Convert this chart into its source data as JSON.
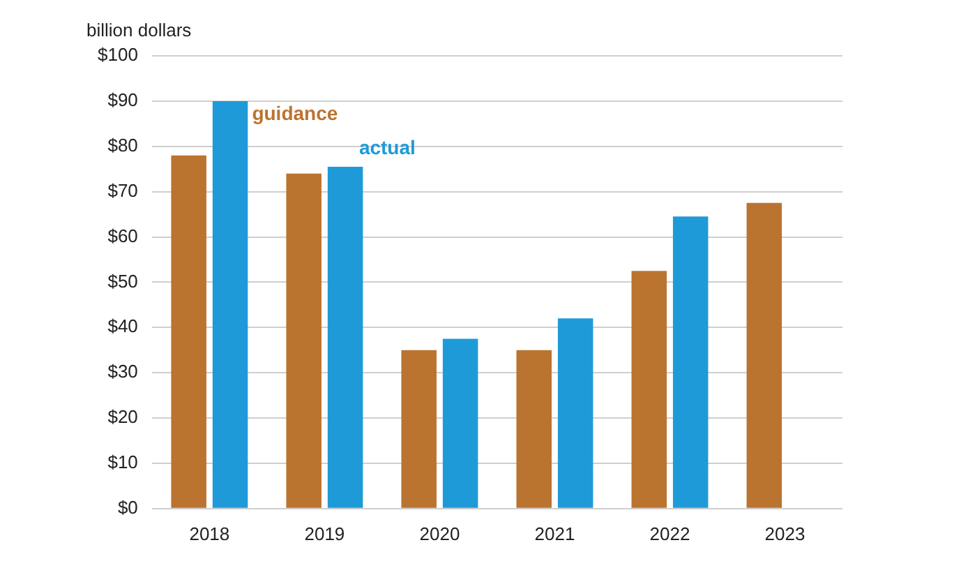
{
  "chart_data": {
    "type": "bar",
    "ylabel": "billion dollars",
    "categories": [
      "2018",
      "2019",
      "2020",
      "2021",
      "2022",
      "2023"
    ],
    "series": [
      {
        "name": "guidance",
        "color": "#bb7330",
        "values": [
          78,
          74,
          35,
          35,
          52.5,
          67.5
        ]
      },
      {
        "name": "actual",
        "color": "#1f9ad8",
        "values": [
          90,
          75.5,
          37.5,
          42,
          64.5,
          null
        ]
      }
    ],
    "ylim": [
      0,
      100
    ],
    "yticks": [
      {
        "value": 0,
        "label": "$0"
      },
      {
        "value": 10,
        "label": "$10"
      },
      {
        "value": 20,
        "label": "$20"
      },
      {
        "value": 30,
        "label": "$30"
      },
      {
        "value": 40,
        "label": "$40"
      },
      {
        "value": 50,
        "label": "$50"
      },
      {
        "value": 60,
        "label": "$60"
      },
      {
        "value": 70,
        "label": "$70"
      },
      {
        "value": 80,
        "label": "$80"
      },
      {
        "value": 90,
        "label": "$90"
      },
      {
        "value": 100,
        "label": "$100"
      }
    ],
    "grid": "y",
    "legend": false
  }
}
